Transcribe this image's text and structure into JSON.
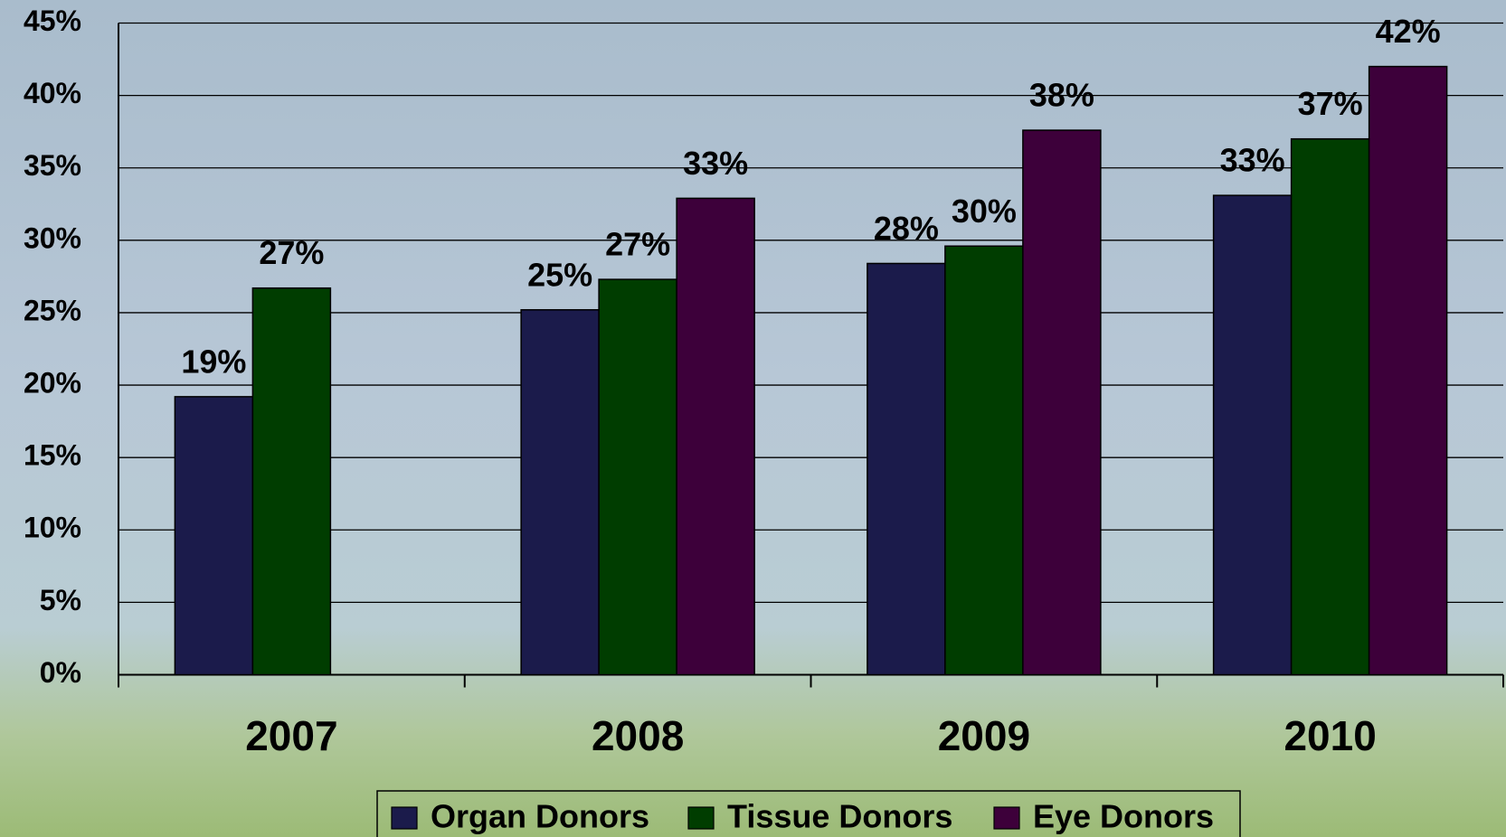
{
  "chart_data": {
    "type": "bar",
    "categories": [
      "2007",
      "2008",
      "2009",
      "2010"
    ],
    "series": [
      {
        "name": "Organ Donors",
        "color": "#1b1b4b",
        "values": [
          19.2,
          25.2,
          28.4,
          33.1
        ],
        "value_labels": [
          "19%",
          "25%",
          "28%",
          "33%"
        ]
      },
      {
        "name": "Tissue Donors",
        "color": "#003d00",
        "values": [
          26.7,
          27.3,
          29.6,
          37.0
        ],
        "value_labels": [
          "27%",
          "27%",
          "30%",
          "37%"
        ]
      },
      {
        "name": "Eye Donors",
        "color": "#3d003a",
        "values": [
          null,
          32.9,
          37.6,
          42.0
        ],
        "value_labels": [
          null,
          "33%",
          "38%",
          "42%"
        ]
      }
    ],
    "ylim": [
      0,
      45
    ],
    "yticks": [
      {
        "value": 0,
        "label": "0%"
      },
      {
        "value": 5,
        "label": "5%"
      },
      {
        "value": 10,
        "label": "10%"
      },
      {
        "value": 15,
        "label": "15%"
      },
      {
        "value": 20,
        "label": "20%"
      },
      {
        "value": 25,
        "label": "25%"
      },
      {
        "value": 30,
        "label": "30%"
      },
      {
        "value": 35,
        "label": "35%"
      },
      {
        "value": 40,
        "label": "40%"
      },
      {
        "value": 45,
        "label": "45%"
      }
    ],
    "grid": true,
    "legend": "bottom"
  }
}
